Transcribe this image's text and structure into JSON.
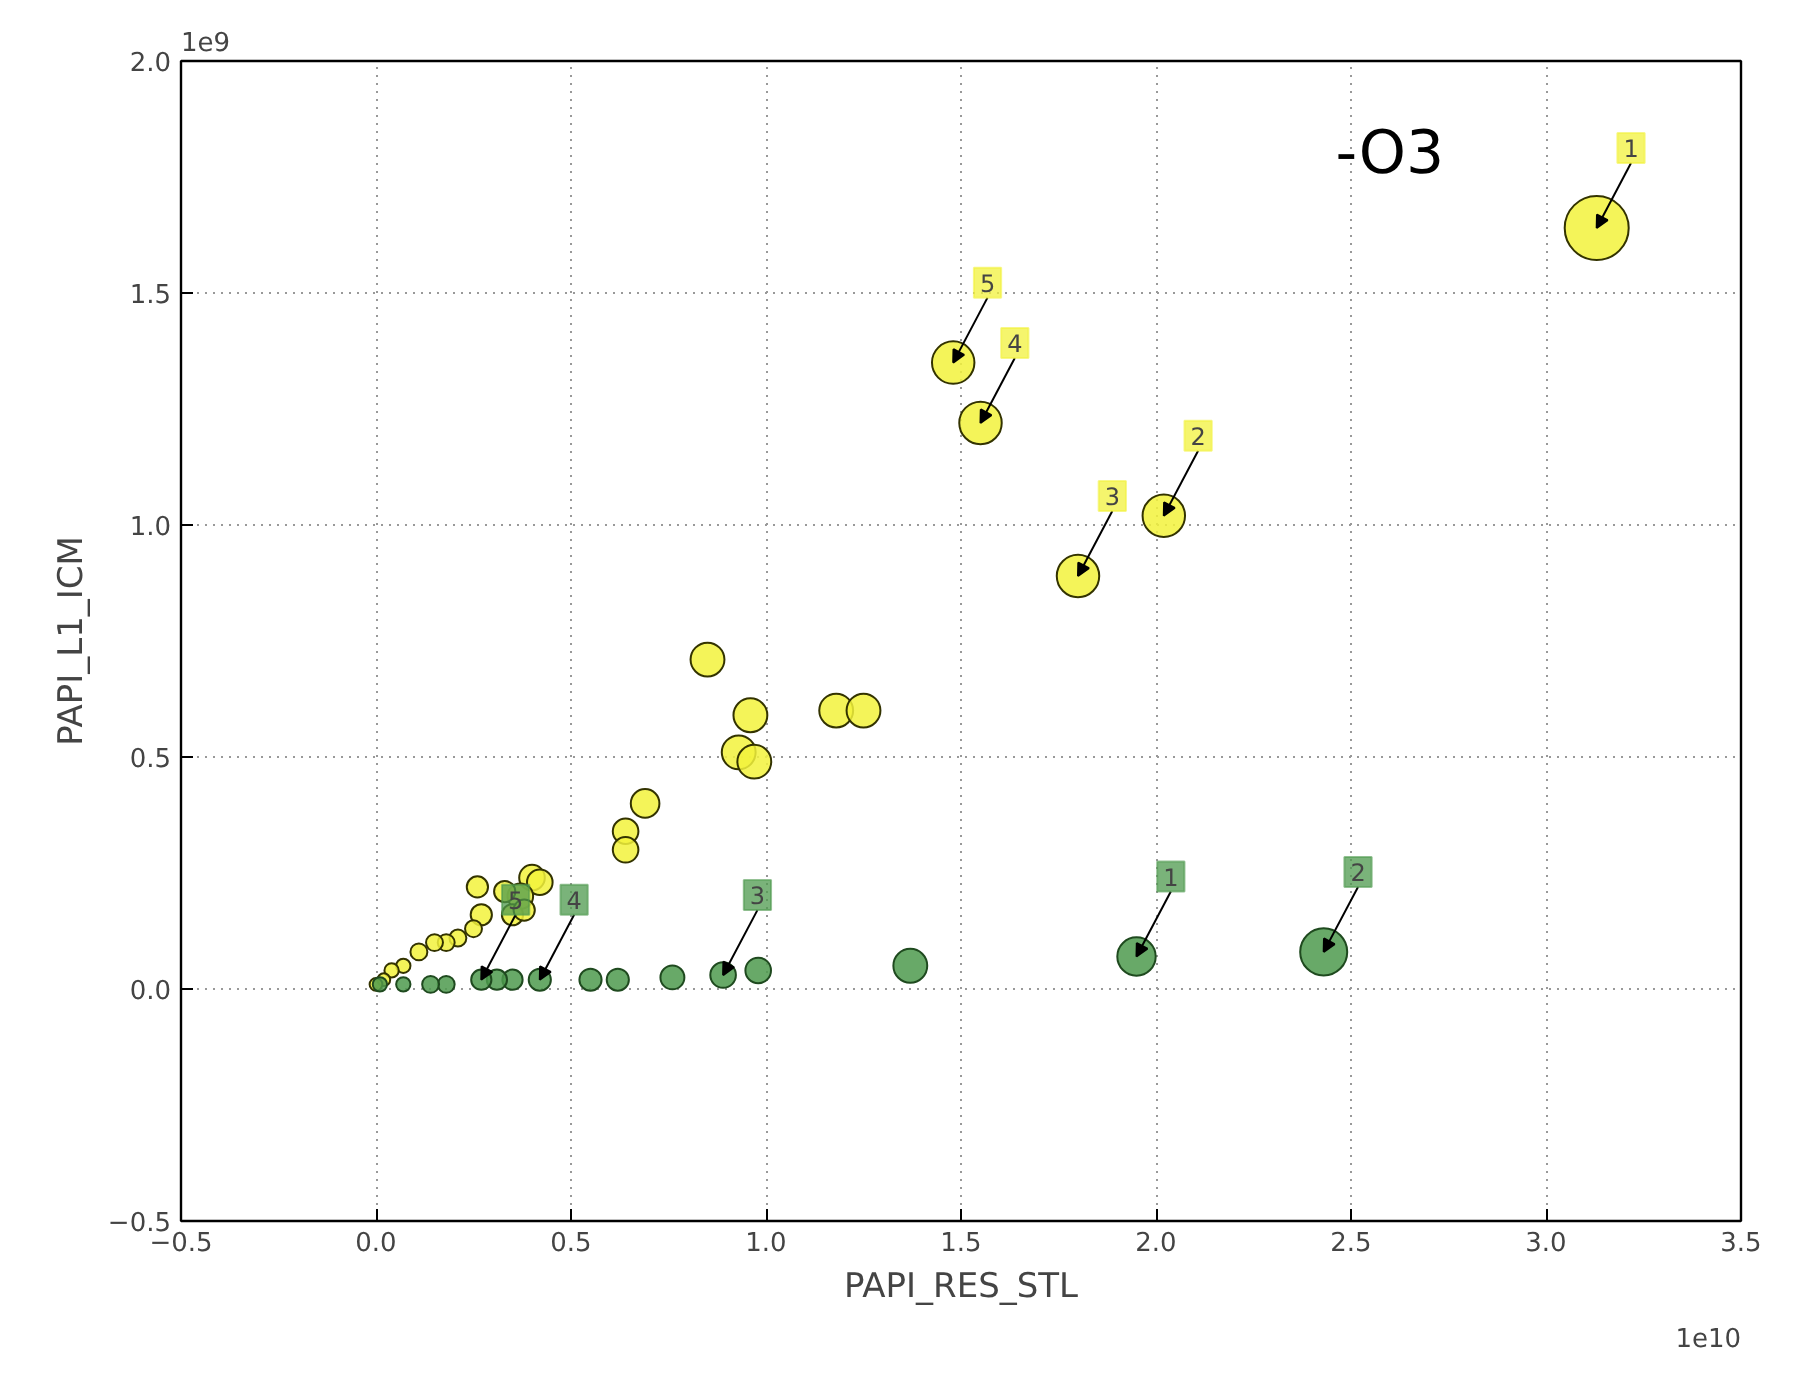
{
  "chart_data": {
    "type": "bubble",
    "xlabel": "PAPI_RES_STL",
    "ylabel": "PAPI_L1_ICM",
    "xlim": [
      -0.5,
      3.5
    ],
    "ylim": [
      -0.5,
      2.0
    ],
    "xticks": [
      {
        "value": -0.5,
        "label": "−0.5"
      },
      {
        "value": 0,
        "label": "0.0"
      },
      {
        "value": 0.5,
        "label": "0.5"
      },
      {
        "value": 1,
        "label": "1.0"
      },
      {
        "value": 1.5,
        "label": "1.5"
      },
      {
        "value": 2,
        "label": "2.0"
      },
      {
        "value": 2.5,
        "label": "2.5"
      },
      {
        "value": 3,
        "label": "3.0"
      },
      {
        "value": 3.5,
        "label": "3.5"
      }
    ],
    "yticks": [
      {
        "value": -0.5,
        "label": "−0.5"
      },
      {
        "value": 0,
        "label": "0.0"
      },
      {
        "value": 0.5,
        "label": "0.5"
      },
      {
        "value": 1,
        "label": "1.0"
      },
      {
        "value": 1.5,
        "label": "1.5"
      },
      {
        "value": 2,
        "label": "2.0"
      }
    ],
    "grid": true,
    "marker": "circle",
    "series": [
      {
        "color": "#f2f23c",
        "x": [
          3.13,
          1.48,
          1.55,
          2.02,
          1.8,
          0.85,
          0.96,
          0.93,
          0.97,
          1.18,
          1.25,
          0.69,
          0.64,
          0.64,
          0.4,
          0.42,
          0.37,
          0.33,
          0.26,
          0.27,
          0.35,
          0.38,
          0.25,
          0.21,
          0.18,
          0.15,
          0.11,
          0.07,
          0.04,
          0.02,
          0.0
        ],
        "values": [
          1.64,
          1.35,
          1.22,
          1.02,
          0.89,
          0.71,
          0.59,
          0.51,
          0.49,
          0.6,
          0.6,
          0.4,
          0.34,
          0.3,
          0.24,
          0.23,
          0.2,
          0.21,
          0.22,
          0.16,
          0.16,
          0.17,
          0.13,
          0.11,
          0.1,
          0.1,
          0.08,
          0.05,
          0.04,
          0.02,
          0.01
        ],
        "sizes": [
          1,
          0.44,
          0.44,
          0.44,
          0.44,
          0.28,
          0.28,
          0.28,
          0.28,
          0.28,
          0.28,
          0.2,
          0.16,
          0.16,
          0.16,
          0.16,
          0.16,
          0.11,
          0.11,
          0.11,
          0.11,
          0.11,
          0.07,
          0.07,
          0.07,
          0.07,
          0.07,
          0.05,
          0.05,
          0.04,
          0.04
        ]
      },
      {
        "color": "#4e9a4e",
        "x": [
          2.43,
          1.95,
          1.37,
          0.98,
          0.89,
          0.76,
          0.62,
          0.55,
          0.42,
          0.35,
          0.31,
          0.27,
          0.18,
          0.14,
          0.07,
          0.01
        ],
        "values": [
          0.08,
          0.07,
          0.05,
          0.04,
          0.03,
          0.025,
          0.02,
          0.02,
          0.02,
          0.02,
          0.02,
          0.02,
          0.01,
          0.01,
          0.01,
          0.01
        ],
        "sizes": [
          0.54,
          0.36,
          0.28,
          0.16,
          0.16,
          0.14,
          0.12,
          0.12,
          0.12,
          0.1,
          0.1,
          0.1,
          0.07,
          0.07,
          0.05,
          0.05
        ]
      }
    ],
    "annotations": [
      "-O3",
      "1e9",
      "1e10",
      {
        "text": "1",
        "x": 3.13,
        "y": 1.64
      },
      {
        "text": "2",
        "x": 2.02,
        "y": 1.02
      },
      {
        "text": "3",
        "x": 1.8,
        "y": 0.89
      },
      {
        "text": "4",
        "x": 1.55,
        "y": 1.22
      },
      {
        "text": "5",
        "x": 1.48,
        "y": 1.35
      },
      {
        "text": "1",
        "x": 1.95,
        "y": 0.07
      },
      {
        "text": "2",
        "x": 2.43,
        "y": 0.08
      },
      {
        "text": "3",
        "x": 0.89,
        "y": 0.03
      },
      {
        "text": "4",
        "x": 0.42,
        "y": 0.02
      },
      {
        "text": "5",
        "x": 0.27,
        "y": 0.02
      }
    ]
  }
}
